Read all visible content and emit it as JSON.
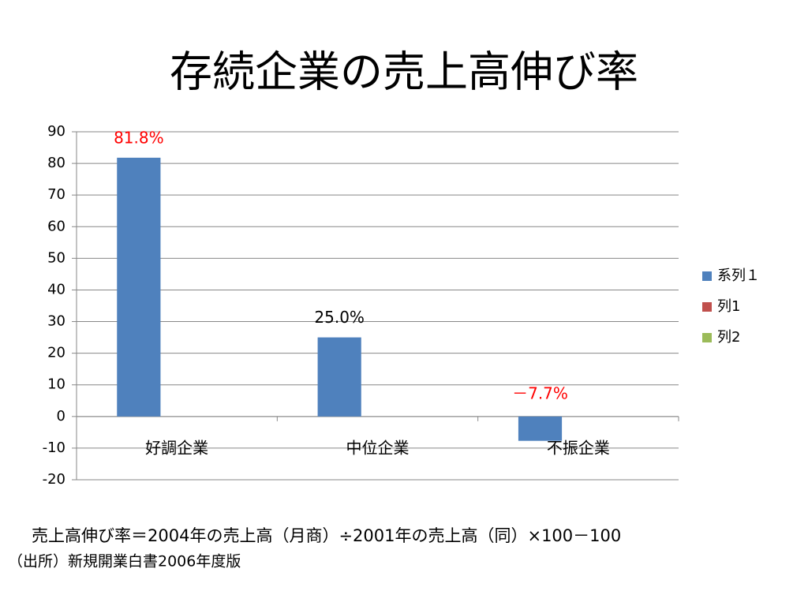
{
  "chart_data": {
    "type": "bar",
    "title": "存続企業の売上高伸び率",
    "categories": [
      "好調企業",
      "中位企業",
      "不振企業"
    ],
    "series": [
      {
        "name": "系列１",
        "color": "#4f81bd",
        "values": [
          81.8,
          25.0,
          -7.7
        ],
        "value_labels": [
          "81.8%",
          "25.0%",
          "－7.7%"
        ],
        "value_label_colors": [
          "#ff0000",
          "#000000",
          "#ff0000"
        ]
      },
      {
        "name": "列1",
        "color": "#c0504d",
        "values": [
          null,
          null,
          null
        ]
      },
      {
        "name": "列2",
        "color": "#9bbb59",
        "values": [
          null,
          null,
          null
        ]
      }
    ],
    "ylim": [
      -20,
      90
    ],
    "yticks": [
      -20,
      -10,
      0,
      10,
      20,
      30,
      40,
      50,
      60,
      70,
      80,
      90
    ],
    "grid": true,
    "legend": "right",
    "notes": [
      "売上高伸び率＝2004年の売上高（月商）÷2001年の売上高（同）×100－100",
      "（出所）新規開業白書2006年度版"
    ]
  }
}
